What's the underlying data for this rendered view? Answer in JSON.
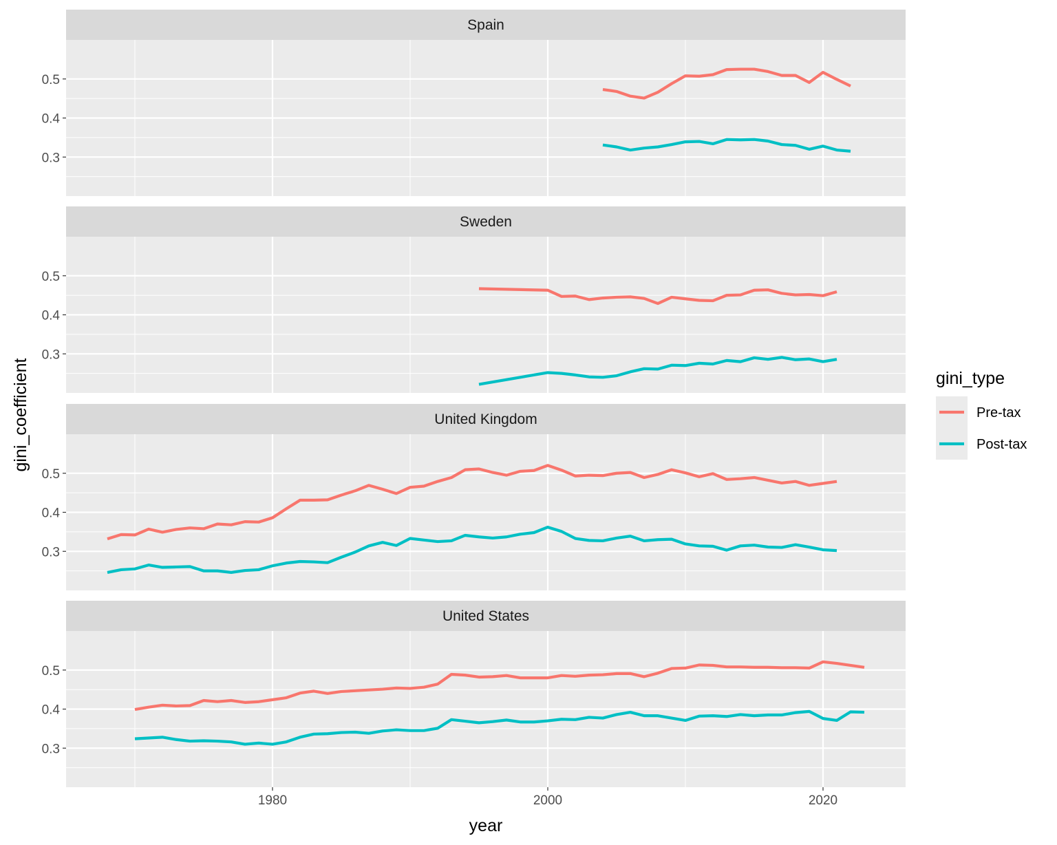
{
  "chart_data": {
    "type": "line",
    "xlabel": "year",
    "ylabel": "gini_coefficient",
    "xlim": [
      1965,
      2026
    ],
    "ylim": [
      0.2,
      0.6
    ],
    "x_ticks": [
      1980,
      2000,
      2020
    ],
    "y_ticks": [
      0.3,
      0.4,
      0.5
    ],
    "grid": true,
    "legend": {
      "title": "gini_type",
      "position": "right",
      "entries": [
        {
          "name": "Pre-tax",
          "color": "#F8766D"
        },
        {
          "name": "Post-tax",
          "color": "#00BFC4"
        }
      ]
    },
    "panels": [
      {
        "name": "Spain",
        "series": [
          {
            "name": "Pre-tax",
            "x": [
              2004,
              2005,
              2006,
              2007,
              2008,
              2009,
              2010,
              2011,
              2012,
              2013,
              2014,
              2015,
              2016,
              2017,
              2018,
              2019,
              2020,
              2021,
              2022
            ],
            "values": [
              0.473,
              0.468,
              0.456,
              0.451,
              0.466,
              0.488,
              0.508,
              0.507,
              0.511,
              0.524,
              0.525,
              0.525,
              0.519,
              0.509,
              0.509,
              0.491,
              0.517,
              0.499,
              0.482
            ]
          },
          {
            "name": "Post-tax",
            "x": [
              2004,
              2005,
              2006,
              2007,
              2008,
              2009,
              2010,
              2011,
              2012,
              2013,
              2014,
              2015,
              2016,
              2017,
              2018,
              2019,
              2020,
              2021,
              2022
            ],
            "values": [
              0.331,
              0.326,
              0.318,
              0.323,
              0.326,
              0.332,
              0.339,
              0.34,
              0.334,
              0.345,
              0.344,
              0.345,
              0.341,
              0.332,
              0.33,
              0.32,
              0.328,
              0.318,
              0.315
            ]
          }
        ]
      },
      {
        "name": "Sweden",
        "series": [
          {
            "name": "Pre-tax",
            "x": [
              1995,
              2000,
              2001,
              2002,
              2003,
              2004,
              2005,
              2006,
              2007,
              2008,
              2009,
              2010,
              2011,
              2012,
              2013,
              2014,
              2015,
              2016,
              2017,
              2018,
              2019,
              2020,
              2021
            ],
            "values": [
              0.467,
              0.463,
              0.447,
              0.448,
              0.439,
              0.443,
              0.445,
              0.446,
              0.442,
              0.429,
              0.445,
              0.441,
              0.437,
              0.436,
              0.45,
              0.451,
              0.463,
              0.464,
              0.455,
              0.451,
              0.452,
              0.449,
              0.459
            ]
          },
          {
            "name": "Post-tax",
            "x": [
              1995,
              2000,
              2001,
              2002,
              2003,
              2004,
              2005,
              2006,
              2007,
              2008,
              2009,
              2010,
              2011,
              2012,
              2013,
              2014,
              2015,
              2016,
              2017,
              2018,
              2019,
              2020,
              2021
            ],
            "values": [
              0.222,
              0.252,
              0.25,
              0.246,
              0.241,
              0.24,
              0.244,
              0.254,
              0.262,
              0.261,
              0.271,
              0.27,
              0.276,
              0.274,
              0.283,
              0.28,
              0.29,
              0.286,
              0.291,
              0.285,
              0.287,
              0.28,
              0.286
            ]
          }
        ]
      },
      {
        "name": "United Kingdom",
        "series": [
          {
            "name": "Pre-tax",
            "x": [
              1968,
              1969,
              1970,
              1971,
              1972,
              1973,
              1974,
              1975,
              1976,
              1977,
              1978,
              1979,
              1980,
              1981,
              1982,
              1983,
              1984,
              1985,
              1986,
              1987,
              1988,
              1989,
              1990,
              1991,
              1992,
              1993,
              1994,
              1995,
              1996,
              1997,
              1998,
              1999,
              2000,
              2001,
              2002,
              2003,
              2004,
              2005,
              2006,
              2007,
              2008,
              2009,
              2010,
              2011,
              2012,
              2013,
              2014,
              2015,
              2016,
              2017,
              2018,
              2019,
              2020,
              2021
            ],
            "values": [
              0.332,
              0.343,
              0.342,
              0.357,
              0.349,
              0.356,
              0.36,
              0.358,
              0.37,
              0.368,
              0.376,
              0.375,
              0.386,
              0.409,
              0.431,
              0.431,
              0.432,
              0.444,
              0.455,
              0.469,
              0.459,
              0.448,
              0.464,
              0.467,
              0.479,
              0.489,
              0.509,
              0.511,
              0.502,
              0.495,
              0.505,
              0.507,
              0.52,
              0.508,
              0.493,
              0.495,
              0.494,
              0.5,
              0.502,
              0.489,
              0.497,
              0.509,
              0.501,
              0.491,
              0.499,
              0.484,
              0.486,
              0.489,
              0.482,
              0.475,
              0.479,
              0.469,
              0.474,
              0.479
            ]
          },
          {
            "name": "Post-tax",
            "x": [
              1968,
              1969,
              1970,
              1971,
              1972,
              1973,
              1974,
              1975,
              1976,
              1977,
              1978,
              1979,
              1980,
              1981,
              1982,
              1983,
              1984,
              1985,
              1986,
              1987,
              1988,
              1989,
              1990,
              1991,
              1992,
              1993,
              1994,
              1995,
              1996,
              1997,
              1998,
              1999,
              2000,
              2001,
              2002,
              2003,
              2004,
              2005,
              2006,
              2007,
              2008,
              2009,
              2010,
              2011,
              2012,
              2013,
              2014,
              2015,
              2016,
              2017,
              2018,
              2019,
              2020,
              2021
            ],
            "values": [
              0.246,
              0.253,
              0.255,
              0.265,
              0.259,
              0.26,
              0.261,
              0.25,
              0.25,
              0.246,
              0.251,
              0.253,
              0.263,
              0.27,
              0.274,
              0.273,
              0.271,
              0.285,
              0.298,
              0.314,
              0.323,
              0.315,
              0.333,
              0.329,
              0.325,
              0.327,
              0.341,
              0.337,
              0.334,
              0.337,
              0.344,
              0.348,
              0.362,
              0.351,
              0.333,
              0.328,
              0.327,
              0.334,
              0.339,
              0.327,
              0.33,
              0.331,
              0.319,
              0.314,
              0.313,
              0.303,
              0.314,
              0.316,
              0.311,
              0.31,
              0.317,
              0.311,
              0.304,
              0.302
            ]
          }
        ]
      },
      {
        "name": "United States",
        "series": [
          {
            "name": "Pre-tax",
            "x": [
              1970,
              1971,
              1972,
              1973,
              1974,
              1975,
              1976,
              1977,
              1978,
              1979,
              1980,
              1981,
              1982,
              1983,
              1984,
              1985,
              1986,
              1987,
              1988,
              1989,
              1990,
              1991,
              1992,
              1993,
              1994,
              1995,
              1996,
              1997,
              1998,
              1999,
              2000,
              2001,
              2002,
              2003,
              2004,
              2005,
              2006,
              2007,
              2008,
              2009,
              2010,
              2011,
              2012,
              2013,
              2014,
              2015,
              2016,
              2017,
              2018,
              2019,
              2020,
              2021,
              2022,
              2023
            ],
            "values": [
              0.399,
              0.405,
              0.41,
              0.408,
              0.409,
              0.422,
              0.419,
              0.422,
              0.417,
              0.419,
              0.424,
              0.429,
              0.441,
              0.446,
              0.44,
              0.445,
              0.447,
              0.449,
              0.451,
              0.454,
              0.453,
              0.456,
              0.464,
              0.489,
              0.487,
              0.482,
              0.483,
              0.486,
              0.48,
              0.48,
              0.48,
              0.486,
              0.484,
              0.487,
              0.488,
              0.491,
              0.491,
              0.483,
              0.492,
              0.504,
              0.505,
              0.513,
              0.512,
              0.508,
              0.508,
              0.507,
              0.507,
              0.506,
              0.506,
              0.505,
              0.521,
              0.517,
              0.512,
              0.507
            ]
          },
          {
            "name": "Post-tax",
            "x": [
              1970,
              1971,
              1972,
              1973,
              1974,
              1975,
              1976,
              1977,
              1978,
              1979,
              1980,
              1981,
              1982,
              1983,
              1984,
              1985,
              1986,
              1987,
              1988,
              1989,
              1990,
              1991,
              1992,
              1993,
              1994,
              1995,
              1996,
              1997,
              1998,
              1999,
              2000,
              2001,
              2002,
              2003,
              2004,
              2005,
              2006,
              2007,
              2008,
              2009,
              2010,
              2011,
              2012,
              2013,
              2014,
              2015,
              2016,
              2017,
              2018,
              2019,
              2020,
              2021,
              2022,
              2023
            ],
            "values": [
              0.324,
              0.326,
              0.328,
              0.322,
              0.318,
              0.319,
              0.318,
              0.316,
              0.31,
              0.313,
              0.31,
              0.316,
              0.328,
              0.336,
              0.337,
              0.34,
              0.341,
              0.338,
              0.344,
              0.347,
              0.345,
              0.345,
              0.351,
              0.373,
              0.369,
              0.365,
              0.368,
              0.372,
              0.367,
              0.367,
              0.37,
              0.374,
              0.373,
              0.379,
              0.377,
              0.386,
              0.392,
              0.383,
              0.383,
              0.377,
              0.371,
              0.382,
              0.383,
              0.381,
              0.386,
              0.383,
              0.385,
              0.385,
              0.391,
              0.394,
              0.376,
              0.371,
              0.393,
              0.392
            ]
          }
        ]
      }
    ]
  }
}
